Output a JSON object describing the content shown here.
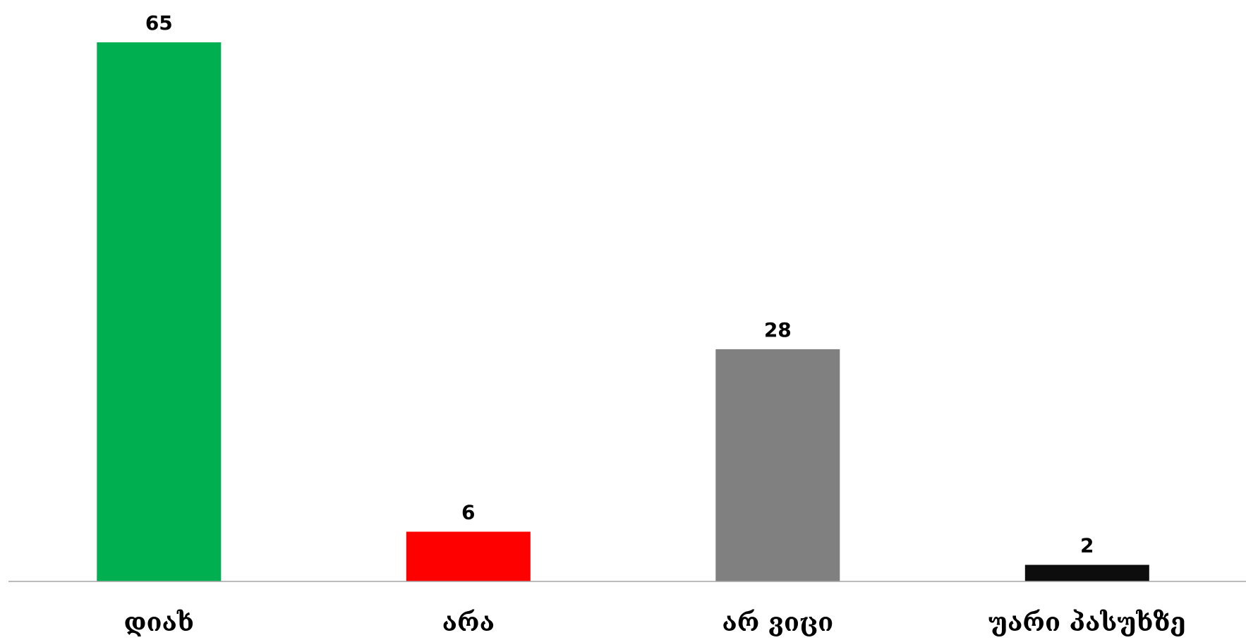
{
  "chart_data": {
    "type": "bar",
    "categories": [
      "დიახ",
      "არა",
      "არ ვიცი",
      "უარი პასუხზე"
    ],
    "values": [
      65,
      6,
      28,
      2
    ],
    "colors": [
      "#00B050",
      "#FF0000",
      "#808080",
      "#0D0D0D"
    ],
    "data_labels": [
      "65",
      "6",
      "28",
      "2"
    ],
    "title": "",
    "xlabel": "",
    "ylabel": "",
    "ylim": [
      0,
      65
    ],
    "grid": false,
    "legend": "none",
    "axis_color": "#A6A6A6"
  }
}
